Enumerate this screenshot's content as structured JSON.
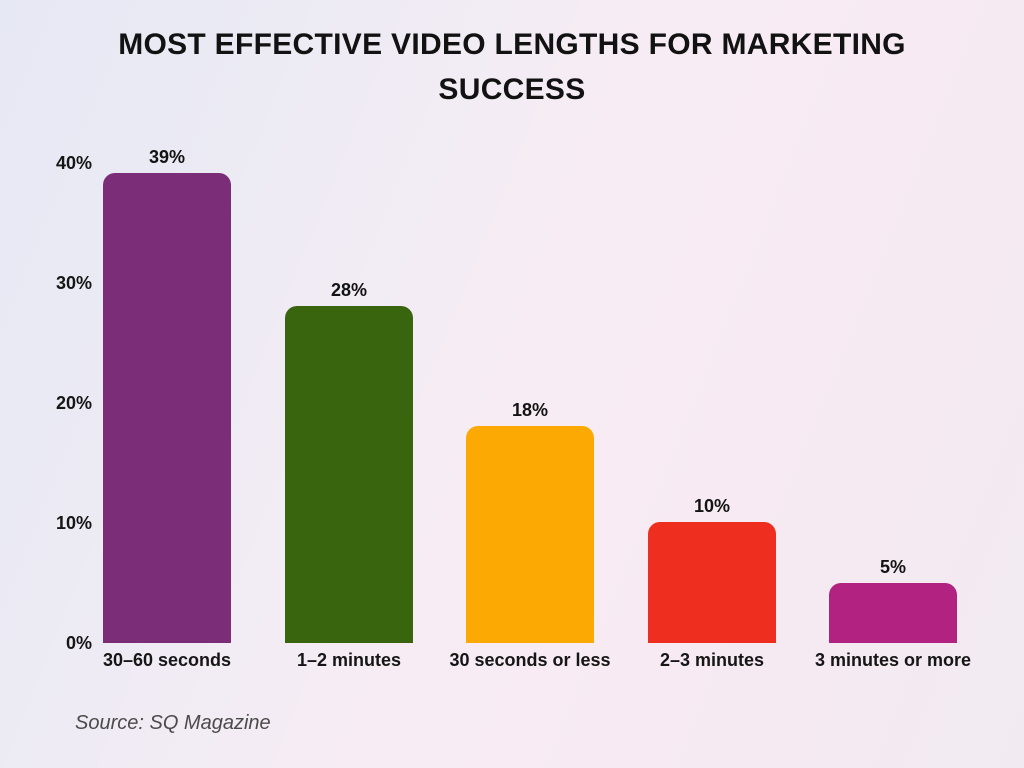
{
  "title": {
    "line1": "MOST EFFECTIVE VIDEO LENGTHS FOR MARKETING",
    "line2": "SUCCESS"
  },
  "source_note": "Source: SQ Magazine",
  "chart_data": {
    "type": "bar",
    "title": "MOST EFFECTIVE VIDEO LENGTHS FOR MARKETING SUCCESS",
    "categories": [
      "30–60 seconds",
      "1–2 minutes",
      "30 seconds or less",
      "2–3 minutes",
      "3 minutes or more"
    ],
    "values": [
      39,
      28,
      18,
      10,
      5
    ],
    "value_labels": [
      "39%",
      "28%",
      "18%",
      "10%",
      "5%"
    ],
    "bar_colors": [
      "#7c2d78",
      "#3a650f",
      "#fda904",
      "#ee2f20",
      "#b12281"
    ],
    "xlabel": "",
    "ylabel": "",
    "ylim": [
      0,
      40
    ],
    "yticks": [
      0,
      10,
      20,
      30,
      40
    ],
    "ytick_labels": [
      "0%",
      "10%",
      "20%",
      "30%",
      "40%"
    ],
    "grid": false,
    "legend": false,
    "bar_corner": "rounded-top",
    "source": "Source: SQ Magazine",
    "text_color": "#131313",
    "background": "soft lavender-pink gradient"
  }
}
